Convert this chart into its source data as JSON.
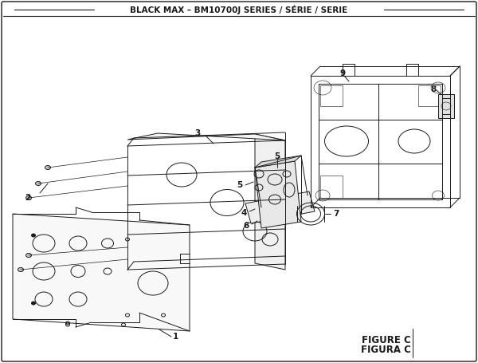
{
  "title": "BLACK MAX – BM10700J SERIES / SÉRIE / SERIE",
  "figure_label": "FIGURE C",
  "figura_label": "FIGURA C",
  "bg_color": "#ffffff",
  "lc": "#1a1a1a",
  "tc": "#1a1a1a"
}
